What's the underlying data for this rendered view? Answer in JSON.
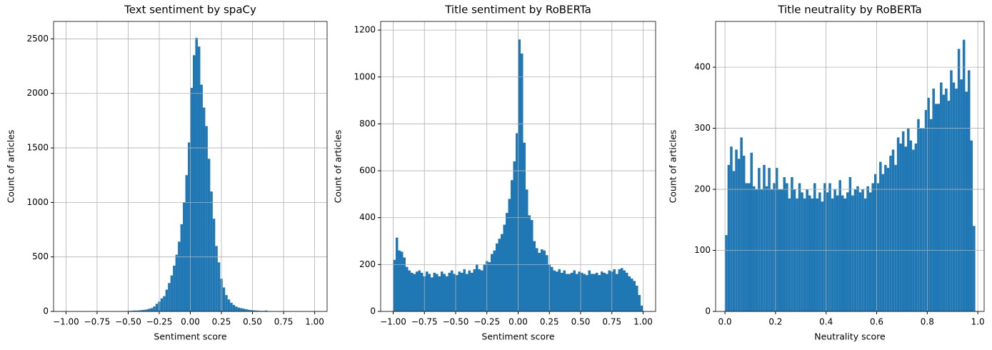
{
  "chart_data": [
    {
      "type": "histogram",
      "title": "Text sentiment by spaCy",
      "xlabel": "Sentiment score",
      "ylabel": "Count of articles",
      "color": "#1f77b4",
      "grid": true,
      "bins": [
        -1,
        -0.98,
        -0.96,
        -0.94,
        -0.92,
        -0.9,
        -0.88,
        -0.86,
        -0.84,
        -0.82,
        -0.8,
        -0.78,
        -0.76,
        -0.74,
        -0.72,
        -0.7,
        -0.68,
        -0.66,
        -0.64,
        -0.62,
        -0.6,
        -0.58,
        -0.56,
        -0.54,
        -0.52,
        -0.5,
        -0.48,
        -0.46,
        -0.44,
        -0.42,
        -0.4,
        -0.38,
        -0.36,
        -0.34,
        -0.32,
        -0.3,
        -0.28,
        -0.26,
        -0.24,
        -0.22,
        -0.2,
        -0.18,
        -0.16,
        -0.14,
        -0.12,
        -0.1,
        -0.08,
        -0.06,
        -0.04,
        -0.02,
        0,
        0.02,
        0.04,
        0.06,
        0.08,
        0.1,
        0.12,
        0.14,
        0.16,
        0.18,
        0.2,
        0.22,
        0.24,
        0.26,
        0.28,
        0.3,
        0.32,
        0.34,
        0.36,
        0.38,
        0.4,
        0.42,
        0.44,
        0.46,
        0.48,
        0.5,
        0.52,
        0.54,
        0.56,
        0.58,
        0.6,
        0.62,
        0.64,
        0.66,
        0.68,
        0.7,
        0.72,
        0.74,
        0.76,
        0.78,
        0.8,
        0.82,
        0.84,
        0.86,
        0.88,
        0.9,
        0.92,
        0.94,
        0.96,
        0.98,
        1
      ],
      "values": [
        0,
        0,
        0,
        0,
        0,
        0,
        0,
        0,
        0,
        0,
        0,
        0,
        0,
        0,
        0,
        0,
        0,
        0,
        0,
        0,
        0,
        2,
        2,
        3,
        3,
        5,
        6,
        8,
        8,
        10,
        12,
        15,
        18,
        25,
        30,
        45,
        70,
        90,
        120,
        140,
        200,
        260,
        330,
        420,
        520,
        640,
        800,
        1000,
        1250,
        1550,
        2050,
        2350,
        2510,
        2430,
        2080,
        1870,
        1700,
        1400,
        1100,
        850,
        600,
        450,
        300,
        220,
        150,
        110,
        80,
        60,
        45,
        35,
        30,
        25,
        20,
        15,
        12,
        10,
        8,
        6,
        5,
        5,
        8,
        3,
        2,
        1,
        0,
        0,
        0,
        0,
        0,
        0,
        0,
        0,
        0,
        0,
        0,
        0,
        0,
        0,
        0,
        0
      ],
      "xlim": [
        -1.1,
        1.1
      ],
      "ylim": [
        0,
        2660
      ],
      "xticks": [
        {
          "value": -1,
          "label": "−1.00"
        },
        {
          "value": -0.75,
          "label": "−0.75"
        },
        {
          "value": -0.5,
          "label": "−0.50"
        },
        {
          "value": -0.25,
          "label": "−0.25"
        },
        {
          "value": 0,
          "label": "0.00"
        },
        0.25,
        {
          "value": 0.5,
          "label": "0.50"
        },
        0.75,
        {
          "value": 1,
          "label": "1.00"
        }
      ],
      "yticks": [
        0,
        500,
        1000,
        1500,
        2000,
        2500
      ]
    },
    {
      "type": "histogram",
      "title": "Title sentiment by RoBERTa",
      "xlabel": "Sentiment score",
      "ylabel": "Count of articles",
      "color": "#1f77b4",
      "grid": true,
      "bins": [
        -1,
        -0.98,
        -0.96,
        -0.94,
        -0.92,
        -0.9,
        -0.88,
        -0.86,
        -0.84,
        -0.82,
        -0.8,
        -0.78,
        -0.76,
        -0.74,
        -0.72,
        -0.7,
        -0.68,
        -0.66,
        -0.64,
        -0.62,
        -0.6,
        -0.58,
        -0.56,
        -0.54,
        -0.52,
        -0.5,
        -0.48,
        -0.46,
        -0.44,
        -0.42,
        -0.4,
        -0.38,
        -0.36,
        -0.34,
        -0.32,
        -0.3,
        -0.28,
        -0.26,
        -0.24,
        -0.22,
        -0.2,
        -0.18,
        -0.16,
        -0.14,
        -0.12,
        -0.1,
        -0.08,
        -0.06,
        -0.04,
        -0.02,
        0,
        0.02,
        0.04,
        0.06,
        0.08,
        0.1,
        0.12,
        0.14,
        0.16,
        0.18,
        0.2,
        0.22,
        0.24,
        0.26,
        0.28,
        0.3,
        0.32,
        0.34,
        0.36,
        0.38,
        0.4,
        0.42,
        0.44,
        0.46,
        0.48,
        0.5,
        0.52,
        0.54,
        0.56,
        0.58,
        0.6,
        0.62,
        0.64,
        0.66,
        0.68,
        0.7,
        0.72,
        0.74,
        0.76,
        0.78,
        0.8,
        0.82,
        0.84,
        0.86,
        0.88,
        0.9,
        0.92,
        0.94,
        0.96,
        0.98,
        1
      ],
      "values": [
        220,
        315,
        260,
        255,
        230,
        190,
        175,
        165,
        160,
        170,
        175,
        165,
        150,
        170,
        160,
        145,
        165,
        160,
        150,
        170,
        160,
        150,
        165,
        175,
        160,
        155,
        170,
        165,
        180,
        160,
        175,
        165,
        180,
        200,
        180,
        175,
        200,
        215,
        210,
        245,
        260,
        290,
        310,
        330,
        370,
        420,
        480,
        560,
        640,
        760,
        1160,
        1100,
        720,
        520,
        410,
        390,
        300,
        270,
        250,
        265,
        260,
        240,
        200,
        190,
        175,
        170,
        180,
        165,
        175,
        160,
        160,
        165,
        175,
        160,
        170,
        165,
        160,
        155,
        175,
        160,
        160,
        165,
        155,
        170,
        165,
        160,
        175,
        170,
        180,
        160,
        180,
        185,
        175,
        165,
        150,
        140,
        130,
        110,
        70,
        25
      ],
      "xlim": [
        -1.1,
        1.1
      ],
      "ylim": [
        0,
        1237
      ],
      "xticks": [
        {
          "value": -1,
          "label": "−1.00"
        },
        {
          "value": -0.75,
          "label": "−0.75"
        },
        {
          "value": -0.5,
          "label": "−0.50"
        },
        {
          "value": -0.25,
          "label": "−0.25"
        },
        {
          "value": 0,
          "label": "0.00"
        },
        0.25,
        {
          "value": 0.5,
          "label": "0.50"
        },
        0.75,
        {
          "value": 1,
          "label": "1.00"
        }
      ],
      "yticks": [
        0,
        200,
        400,
        600,
        800,
        1000,
        1200
      ]
    },
    {
      "type": "histogram",
      "title": "Title neutrality by RoBERTa",
      "xlabel": "Neutrality score",
      "ylabel": "Count of articles",
      "color": "#1f77b4",
      "grid": true,
      "bins": [
        0,
        0.01,
        0.02,
        0.03,
        0.04,
        0.05,
        0.06,
        0.07,
        0.08,
        0.09,
        0.1,
        0.11,
        0.12,
        0.13,
        0.14,
        0.15,
        0.16,
        0.17,
        0.18,
        0.19,
        0.2,
        0.21,
        0.22,
        0.23,
        0.24,
        0.25,
        0.26,
        0.27,
        0.28,
        0.29,
        0.3,
        0.31,
        0.32,
        0.33,
        0.34,
        0.35,
        0.36,
        0.37,
        0.38,
        0.39,
        0.4,
        0.41,
        0.42,
        0.43,
        0.44,
        0.45,
        0.46,
        0.47,
        0.48,
        0.49,
        0.5,
        0.51,
        0.52,
        0.53,
        0.54,
        0.55,
        0.56,
        0.57,
        0.58,
        0.59,
        0.6,
        0.61,
        0.62,
        0.63,
        0.64,
        0.65,
        0.66,
        0.67,
        0.68,
        0.69,
        0.7,
        0.71,
        0.72,
        0.73,
        0.74,
        0.75,
        0.76,
        0.77,
        0.78,
        0.79,
        0.8,
        0.81,
        0.82,
        0.83,
        0.84,
        0.85,
        0.86,
        0.87,
        0.88,
        0.89,
        0.9,
        0.91,
        0.92,
        0.93,
        0.94,
        0.95,
        0.96,
        0.97,
        0.98,
        0.99,
        1
      ],
      "values": [
        125,
        240,
        270,
        230,
        265,
        250,
        285,
        255,
        210,
        210,
        260,
        205,
        200,
        235,
        200,
        240,
        205,
        235,
        200,
        210,
        235,
        200,
        200,
        220,
        210,
        185,
        220,
        200,
        185,
        210,
        195,
        185,
        200,
        190,
        185,
        210,
        185,
        195,
        180,
        210,
        195,
        210,
        185,
        200,
        190,
        215,
        190,
        185,
        195,
        220,
        190,
        200,
        205,
        195,
        200,
        185,
        205,
        195,
        210,
        225,
        210,
        245,
        225,
        240,
        235,
        255,
        265,
        240,
        285,
        275,
        295,
        270,
        300,
        280,
        265,
        275,
        315,
        300,
        300,
        330,
        350,
        315,
        365,
        340,
        340,
        375,
        355,
        365,
        345,
        395,
        375,
        365,
        430,
        380,
        445,
        360,
        395,
        280,
        140,
        0
      ],
      "xlim": [
        -0.037,
        1.025
      ],
      "ylim": [
        0,
        475
      ],
      "xticks": [
        {
          "value": 0,
          "label": "0.0"
        },
        0.2,
        0.4,
        0.6,
        0.8,
        {
          "value": 1,
          "label": "1.0"
        }
      ],
      "yticks": [
        0,
        100,
        200,
        300,
        400
      ]
    }
  ]
}
